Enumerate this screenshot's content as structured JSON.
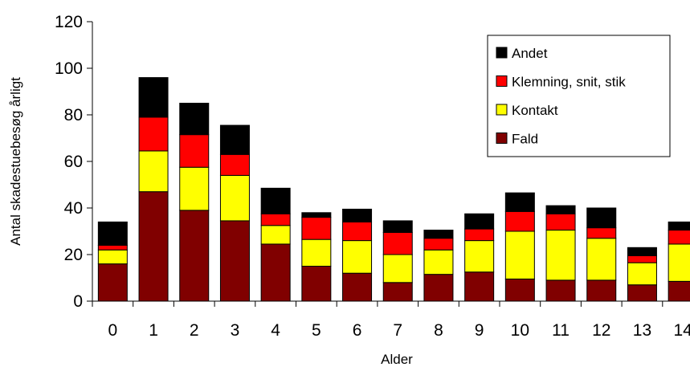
{
  "chart_data": {
    "type": "bar",
    "stacked": true,
    "xlabel": "Alder",
    "ylabel": "Antal skadestuebesøg årligt",
    "ylim": [
      0,
      120
    ],
    "yticks": [
      0,
      20,
      40,
      60,
      80,
      100,
      120
    ],
    "grid": false,
    "legend_position": "top-right",
    "categories": [
      "0",
      "1",
      "2",
      "3",
      "4",
      "5",
      "6",
      "7",
      "8",
      "9",
      "10",
      "11",
      "12",
      "13",
      "14"
    ],
    "series": [
      {
        "name": "Fald",
        "color": "#800000",
        "values": [
          16,
          47,
          39,
          34.5,
          24.5,
          15,
          12,
          8,
          11.5,
          12.5,
          9.5,
          9,
          9,
          7,
          8.5
        ]
      },
      {
        "name": "Kontakt",
        "color": "#ffff00",
        "values": [
          6,
          17.5,
          18.5,
          19.5,
          8,
          11.5,
          14,
          12,
          10.5,
          13.5,
          20.5,
          21.5,
          18,
          9.5,
          16
        ]
      },
      {
        "name": "Klemning, snit, stik",
        "color": "#ff0000",
        "values": [
          2,
          14.5,
          14,
          9,
          5,
          9.5,
          8,
          9.5,
          5,
          5,
          8.5,
          7,
          4.5,
          3,
          6
        ]
      },
      {
        "name": "Andet",
        "color": "#000000",
        "values": [
          10,
          17,
          13.5,
          12.5,
          11,
          2,
          5.5,
          5,
          3.5,
          6.5,
          8,
          3.5,
          8.5,
          3.5,
          3.5
        ]
      }
    ]
  }
}
